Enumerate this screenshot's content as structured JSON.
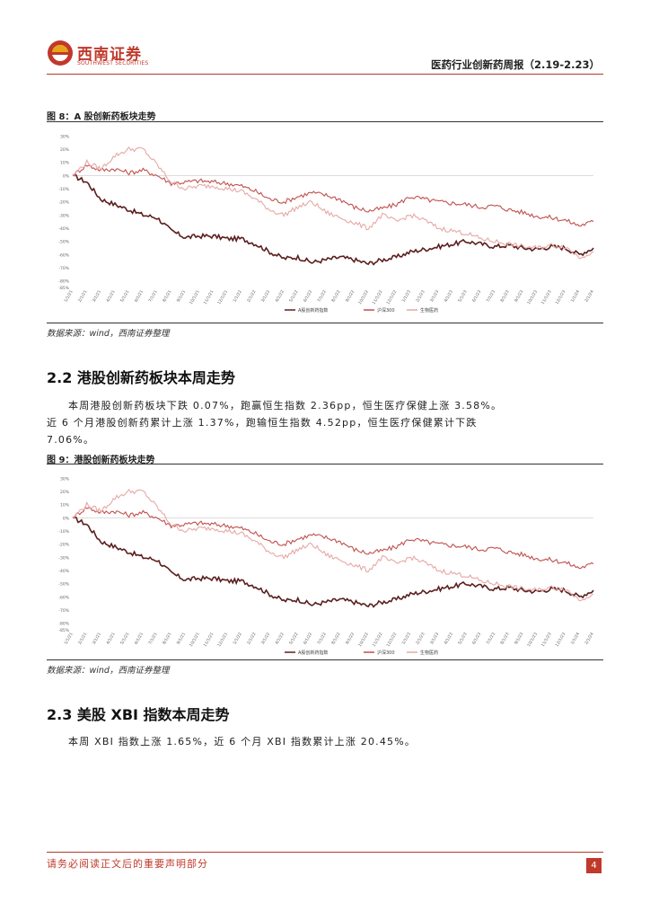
{
  "header": {
    "logo_cn": "西南证券",
    "logo_en": "SOUTHWEST SECURITIES",
    "report_title": "医药行业创新药周报（2.19-2.23）",
    "accent_color": "#c0392b"
  },
  "figure8": {
    "title": "图 8：A 股创新药板块走势",
    "source": "数据来源：wind，西南证券整理"
  },
  "section_2_2": {
    "heading": "2.2 港股创新药板块本周走势",
    "line1": "本周港股创新药板块下跌 0.07%，跑赢恒生指数 2.36pp，恒生医疗保健上涨 3.58%。",
    "line2": "近 6 个月港股创新药累计上涨 1.37%，跑输恒生指数 4.52pp，恒生医疗保健累计下跌",
    "line3": "7.06%。"
  },
  "figure9": {
    "title": "图 9：港股创新药板块走势",
    "source": "数据来源：wind，西南证券整理"
  },
  "section_2_3": {
    "heading": "2.3 美股 XBI 指数本周走势",
    "line1": "本周 XBI 指数上涨 1.65%，近 6 个月 XBI 指数累计上涨 20.45%。"
  },
  "footer": {
    "disclaimer": "请务必阅读正文后的重要声明部分",
    "page_number": "4"
  },
  "chart_data": [
    {
      "type": "line",
      "ylabel": "",
      "ylim": [
        -0.85,
        0.35
      ],
      "yticks": [
        "30%",
        "20%",
        "10%",
        "0%",
        "-10%",
        "-20%",
        "-30%",
        "-40%",
        "-50%",
        "-60%",
        "-70%",
        "-80%",
        "-85%"
      ],
      "ytick_values": [
        0.3,
        0.2,
        0.1,
        0.0,
        -0.1,
        -0.2,
        -0.3,
        -0.4,
        -0.5,
        -0.6,
        -0.7,
        -0.8,
        -0.85
      ],
      "x": [
        "1/1/21",
        "2/1/21",
        "3/1/21",
        "4/1/21",
        "5/1/21",
        "6/1/21",
        "7/1/21",
        "8/1/21",
        "9/1/21",
        "10/1/21",
        "11/1/21",
        "12/1/21",
        "1/1/22",
        "2/1/22",
        "3/1/22",
        "4/1/22",
        "5/1/22",
        "6/1/22",
        "7/1/22",
        "8/1/22",
        "9/1/22",
        "10/1/22",
        "11/1/22",
        "12/1/22",
        "1/1/23",
        "2/1/23",
        "3/1/23",
        "4/1/23",
        "5/1/23",
        "6/1/23",
        "7/1/23",
        "8/1/23",
        "9/1/23",
        "10/1/23",
        "11/1/23",
        "12/1/23",
        "1/1/24",
        "2/1/24"
      ],
      "series": [
        {
          "name": "A股创新药指数",
          "color": "#5b1f1f",
          "values": [
            0.0,
            -0.05,
            -0.18,
            -0.22,
            -0.26,
            -0.3,
            -0.32,
            -0.42,
            -0.47,
            -0.46,
            -0.46,
            -0.48,
            -0.48,
            -0.52,
            -0.58,
            -0.63,
            -0.62,
            -0.66,
            -0.64,
            -0.62,
            -0.64,
            -0.67,
            -0.64,
            -0.62,
            -0.58,
            -0.56,
            -0.54,
            -0.52,
            -0.5,
            -0.52,
            -0.54,
            -0.53,
            -0.55,
            -0.56,
            -0.54,
            -0.55,
            -0.6,
            -0.55
          ]
        },
        {
          "name": "沪深300",
          "color": "#c0504d",
          "values": [
            0.0,
            0.08,
            0.04,
            0.05,
            0.02,
            0.04,
            0.0,
            -0.06,
            -0.05,
            -0.04,
            -0.05,
            -0.06,
            -0.08,
            -0.12,
            -0.18,
            -0.2,
            -0.16,
            -0.13,
            -0.15,
            -0.18,
            -0.24,
            -0.27,
            -0.25,
            -0.22,
            -0.16,
            -0.18,
            -0.2,
            -0.21,
            -0.22,
            -0.24,
            -0.23,
            -0.26,
            -0.28,
            -0.31,
            -0.32,
            -0.34,
            -0.38,
            -0.35
          ]
        },
        {
          "name": "生物医药",
          "color": "#e6a8a6",
          "values": [
            0.0,
            0.1,
            0.05,
            0.15,
            0.2,
            0.2,
            0.08,
            -0.05,
            -0.1,
            -0.08,
            -0.08,
            -0.1,
            -0.12,
            -0.18,
            -0.26,
            -0.3,
            -0.24,
            -0.2,
            -0.28,
            -0.32,
            -0.36,
            -0.4,
            -0.3,
            -0.35,
            -0.3,
            -0.34,
            -0.4,
            -0.42,
            -0.44,
            -0.48,
            -0.5,
            -0.52,
            -0.54,
            -0.55,
            -0.53,
            -0.54,
            -0.62,
            -0.58
          ]
        }
      ]
    },
    {
      "type": "line",
      "ylabel": "",
      "ylim": [
        -0.85,
        0.35
      ],
      "yticks": [
        "30%",
        "20%",
        "10%",
        "0%",
        "-10%",
        "-20%",
        "-30%",
        "-40%",
        "-50%",
        "-60%",
        "-70%",
        "-80%",
        "-85%"
      ],
      "ytick_values": [
        0.3,
        0.2,
        0.1,
        0.0,
        -0.1,
        -0.2,
        -0.3,
        -0.4,
        -0.5,
        -0.6,
        -0.7,
        -0.8,
        -0.85
      ],
      "x": [
        "1/1/21",
        "2/1/21",
        "3/1/21",
        "4/1/21",
        "5/1/21",
        "6/1/21",
        "7/1/21",
        "8/1/21",
        "9/1/21",
        "10/1/21",
        "11/1/21",
        "12/1/21",
        "1/1/22",
        "2/1/22",
        "3/1/22",
        "4/1/22",
        "5/1/22",
        "6/1/22",
        "7/1/22",
        "8/1/22",
        "9/1/22",
        "10/1/22",
        "11/1/22",
        "12/1/22",
        "1/1/23",
        "2/1/23",
        "3/1/23",
        "4/1/23",
        "5/1/23",
        "6/1/23",
        "7/1/23",
        "8/1/23",
        "9/1/23",
        "10/1/23",
        "11/1/23",
        "12/1/23",
        "1/1/24",
        "2/1/24"
      ],
      "series": [
        {
          "name": "A股创新药指数",
          "color": "#5b1f1f",
          "values": [
            0.0,
            -0.05,
            -0.18,
            -0.22,
            -0.26,
            -0.3,
            -0.32,
            -0.42,
            -0.47,
            -0.46,
            -0.46,
            -0.48,
            -0.48,
            -0.52,
            -0.58,
            -0.63,
            -0.62,
            -0.66,
            -0.64,
            -0.62,
            -0.64,
            -0.67,
            -0.64,
            -0.62,
            -0.58,
            -0.56,
            -0.54,
            -0.52,
            -0.5,
            -0.52,
            -0.54,
            -0.53,
            -0.55,
            -0.56,
            -0.54,
            -0.55,
            -0.6,
            -0.55
          ]
        },
        {
          "name": "沪深300",
          "color": "#c0504d",
          "values": [
            0.0,
            0.08,
            0.04,
            0.05,
            0.02,
            0.04,
            0.0,
            -0.06,
            -0.05,
            -0.04,
            -0.05,
            -0.06,
            -0.08,
            -0.12,
            -0.18,
            -0.2,
            -0.16,
            -0.13,
            -0.15,
            -0.18,
            -0.24,
            -0.27,
            -0.25,
            -0.22,
            -0.16,
            -0.18,
            -0.2,
            -0.21,
            -0.22,
            -0.24,
            -0.23,
            -0.26,
            -0.28,
            -0.31,
            -0.32,
            -0.34,
            -0.38,
            -0.35
          ]
        },
        {
          "name": "生物医药",
          "color": "#e6a8a6",
          "values": [
            0.0,
            0.1,
            0.05,
            0.15,
            0.2,
            0.2,
            0.08,
            -0.05,
            -0.1,
            -0.08,
            -0.08,
            -0.1,
            -0.12,
            -0.18,
            -0.26,
            -0.3,
            -0.24,
            -0.2,
            -0.28,
            -0.32,
            -0.36,
            -0.4,
            -0.3,
            -0.35,
            -0.3,
            -0.34,
            -0.4,
            -0.42,
            -0.44,
            -0.48,
            -0.5,
            -0.52,
            -0.54,
            -0.55,
            -0.53,
            -0.54,
            -0.62,
            -0.58
          ]
        }
      ]
    }
  ]
}
